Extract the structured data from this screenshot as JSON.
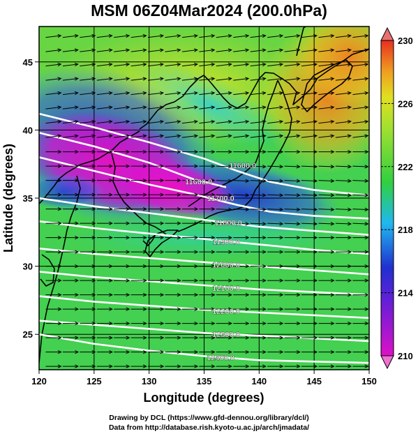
{
  "title": "MSM 06Z04Mar2024 (200.0hPa)",
  "xlabel": "Longitude (degrees)",
  "ylabel": "Latitude  (degrees)",
  "credits": [
    "Drawing by DCL (https://www.gfd-dennou.org/library/dcl/)",
    "Data from http://database.rish.kyoto-u.ac.jp/arch/jmadata/"
  ],
  "chart_data": {
    "type": "heatmap",
    "title": "MSM 06Z04Mar2024 (200.0hPa)",
    "xlabel": "Longitude (degrees)",
    "ylabel": "Latitude  (degrees)",
    "xlim": [
      120,
      150
    ],
    "ylim": [
      22.4,
      47.6
    ],
    "xticks": [
      120,
      125,
      130,
      135,
      140,
      145,
      150
    ],
    "yticks": [
      25,
      30,
      35,
      40,
      45
    ],
    "grid": true,
    "colorbar": {
      "min": 210,
      "max": 230,
      "ticks": [
        210,
        214,
        218,
        222,
        226,
        230
      ],
      "colors": [
        "#dd10c8",
        "#2030d0",
        "#20b8f0",
        "#30d040",
        "#e0e020",
        "#f0a020",
        "#e83020"
      ]
    },
    "contours": [
      {
        "label": "11600.0",
        "points": [
          [
            120,
            41.2
          ],
          [
            125,
            40.2
          ],
          [
            130,
            39.1
          ],
          [
            135,
            37.9
          ],
          [
            138,
            37.0
          ],
          [
            141,
            36.2
          ],
          [
            145,
            35.6
          ],
          [
            150,
            35.2
          ]
        ]
      },
      {
        "label": "11600.0",
        "points": [
          [
            120,
            39.8
          ],
          [
            125,
            38.8
          ],
          [
            130,
            37.6
          ],
          [
            134,
            36.4
          ],
          [
            137,
            35.8
          ]
        ]
      },
      {
        "label": "11700.0",
        "points": [
          [
            120,
            38.0
          ],
          [
            125,
            37.0
          ],
          [
            130,
            36.0
          ],
          [
            134,
            35.3
          ],
          [
            138,
            34.5
          ],
          [
            141,
            34.0
          ],
          [
            145,
            33.7
          ],
          [
            150,
            33.5
          ]
        ]
      },
      {
        "label": "11800.0",
        "points": [
          [
            120,
            35.0
          ],
          [
            125,
            34.4
          ],
          [
            130,
            33.9
          ],
          [
            135,
            33.4
          ],
          [
            140,
            32.9
          ],
          [
            145,
            32.6
          ],
          [
            150,
            32.3
          ]
        ]
      },
      {
        "label": "11900.0",
        "points": [
          [
            120,
            33.3
          ],
          [
            125,
            32.8
          ],
          [
            130,
            32.4
          ],
          [
            135,
            32.0
          ],
          [
            140,
            31.6
          ],
          [
            145,
            31.2
          ],
          [
            150,
            30.9
          ]
        ]
      },
      {
        "label": "12000.0",
        "points": [
          [
            120,
            31.3
          ],
          [
            125,
            30.9
          ],
          [
            130,
            30.6
          ],
          [
            135,
            30.3
          ],
          [
            140,
            30.0
          ],
          [
            145,
            29.7
          ],
          [
            150,
            29.4
          ]
        ]
      },
      {
        "label": "12100.0",
        "points": [
          [
            120,
            29.6
          ],
          [
            125,
            29.2
          ],
          [
            130,
            28.9
          ],
          [
            135,
            28.6
          ],
          [
            140,
            28.3
          ],
          [
            145,
            28.1
          ],
          [
            150,
            27.9
          ]
        ]
      },
      {
        "label": "12200.0",
        "points": [
          [
            120,
            27.8
          ],
          [
            125,
            27.4
          ],
          [
            130,
            27.1
          ],
          [
            135,
            26.8
          ],
          [
            140,
            26.6
          ],
          [
            145,
            26.4
          ],
          [
            150,
            26.2
          ]
        ]
      },
      {
        "label": "12300.0",
        "points": [
          [
            120,
            26.0
          ],
          [
            125,
            25.7
          ],
          [
            130,
            25.4
          ],
          [
            135,
            25.1
          ],
          [
            140,
            24.9
          ],
          [
            145,
            24.7
          ],
          [
            150,
            24.5
          ]
        ]
      },
      {
        "label": "12400.0",
        "points": [
          [
            120,
            25.0
          ],
          [
            125,
            24.3
          ],
          [
            130,
            23.8
          ],
          [
            135,
            23.4
          ],
          [
            140,
            23.1
          ],
          [
            145,
            23.0
          ],
          [
            150,
            22.9
          ]
        ]
      }
    ],
    "contour_labels": [
      {
        "text": "11600.0",
        "lon": 138.5,
        "lat": 37.4
      },
      {
        "text": "11600.0",
        "lon": 134.5,
        "lat": 36.2
      },
      {
        "text": "11700.0",
        "lon": 136.5,
        "lat": 35.0
      },
      {
        "text": "11800.0",
        "lon": 137.2,
        "lat": 33.2
      },
      {
        "text": "11900.0",
        "lon": 137.0,
        "lat": 31.8
      },
      {
        "text": "12000.0",
        "lon": 137.0,
        "lat": 30.1
      },
      {
        "text": "12100.0",
        "lon": 137.0,
        "lat": 28.4
      },
      {
        "text": "12200.0",
        "lon": 137.0,
        "lat": 26.7
      },
      {
        "text": "12300.0",
        "lon": 137.0,
        "lat": 25.0
      },
      {
        "text": "12400.0",
        "lon": 136.5,
        "lat": 23.3
      }
    ],
    "wind_vectors": "eastward arrows on a regular grid, slight northward tilt in north-west, slight southward tilt south-east of Japan"
  }
}
